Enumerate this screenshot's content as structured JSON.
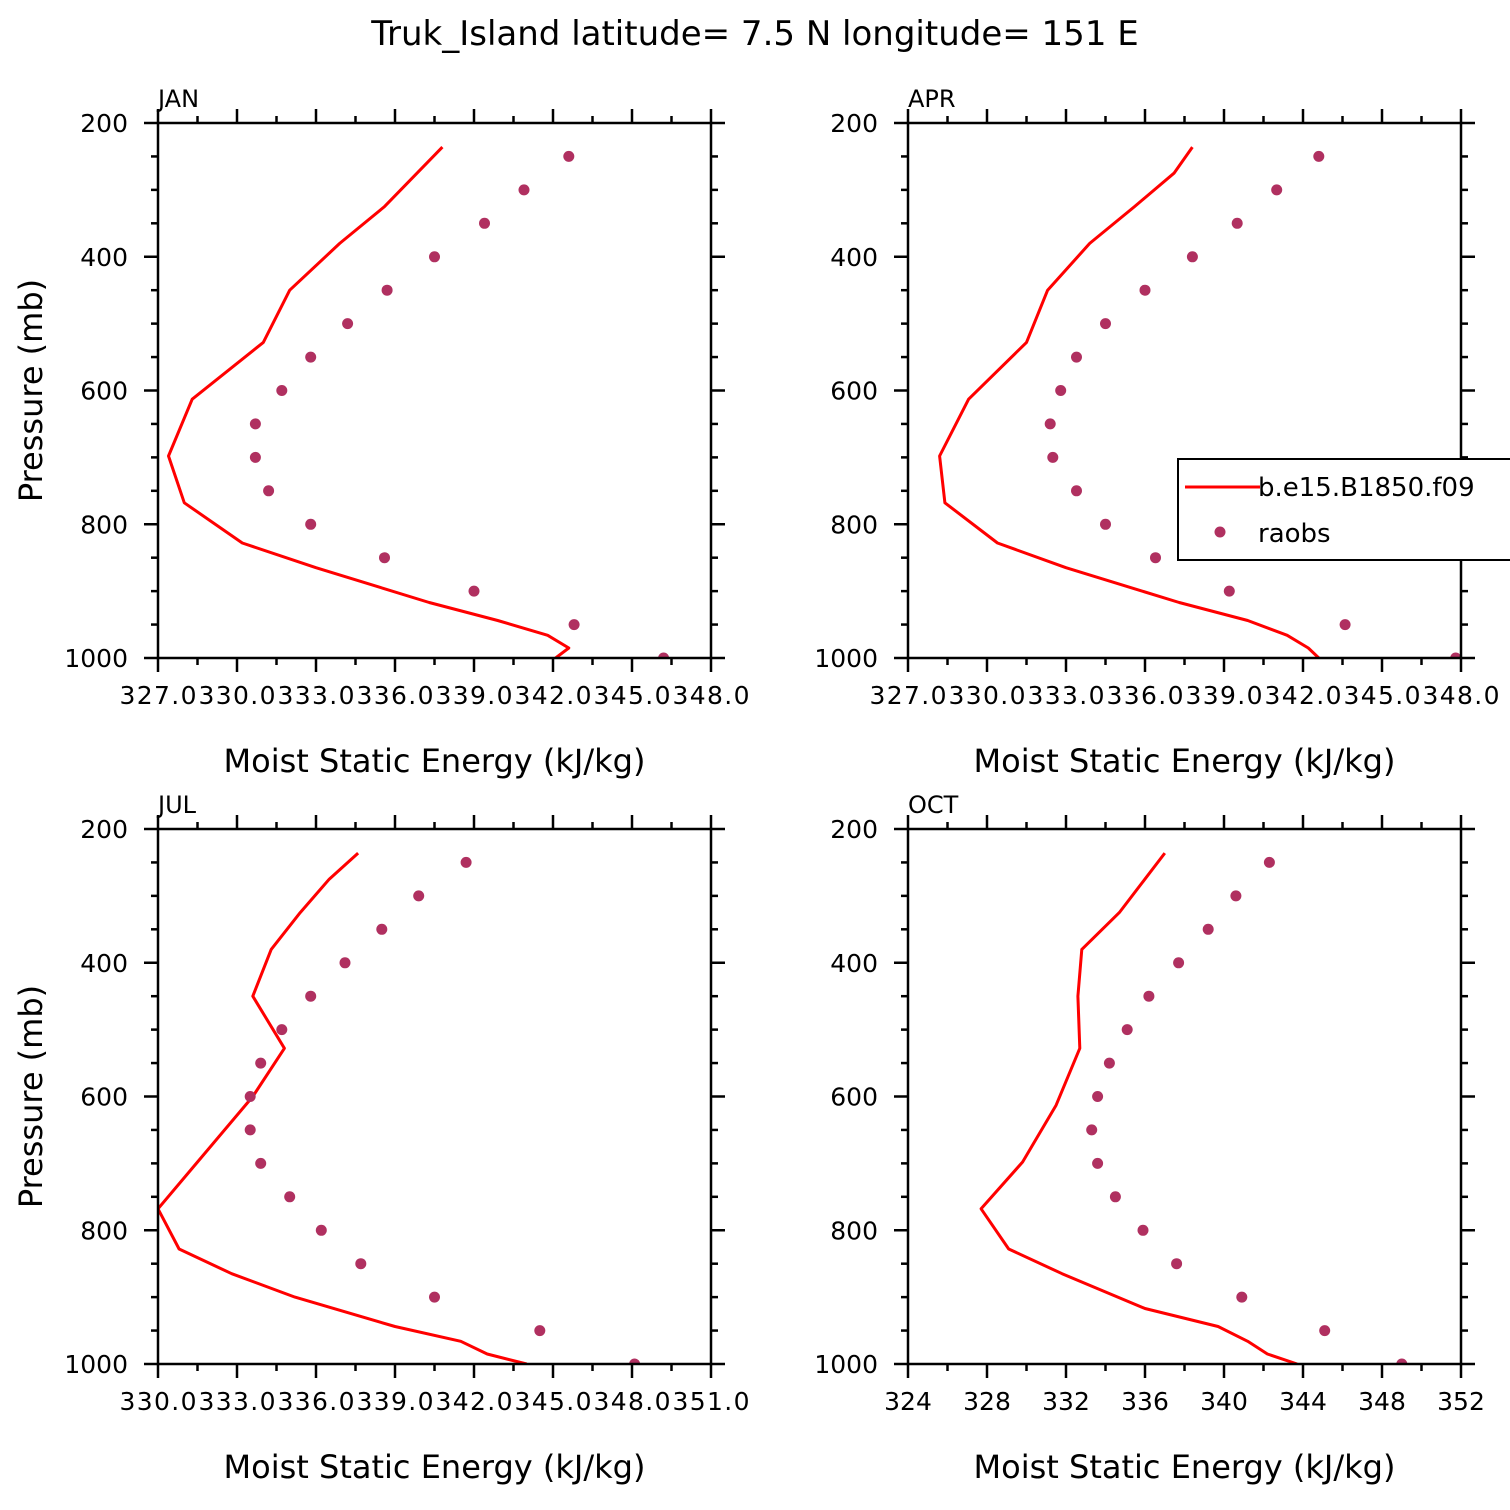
{
  "title": "Truk_Island  latitude= 7.5 N longitude= 151 E",
  "colors": {
    "model": "#ff0000",
    "obs": "#b03060",
    "axis": "#000000"
  },
  "chart_data": [
    {
      "type": "line",
      "panel": "JAN",
      "xlabel": "Moist Static Energy (kJ/kg)",
      "ylabel": "Pressure (mb)",
      "xlim": [
        327,
        348
      ],
      "ylim": [
        200,
        1000
      ],
      "y_inverted": true,
      "x_tick_values": [
        327,
        330,
        333,
        336,
        339,
        342,
        345,
        348
      ],
      "x_tick_labels": [
        "327.0",
        "330.0",
        "333.0",
        "336.0",
        "339.0",
        "342.0",
        "345.0",
        "348.0"
      ],
      "y_tick_values": [
        200,
        400,
        600,
        800,
        1000
      ],
      "y_tick_labels": [
        "200",
        "400",
        "600",
        "800",
        "1000"
      ],
      "series": [
        {
          "name": "b.e15.B1850.f09",
          "kind": "line",
          "x": [
            337.8,
            335.6,
            333.9,
            332.0,
            331.0,
            328.3,
            327.4,
            328.0,
            330.2,
            333.0,
            337.3,
            339.9,
            341.8,
            342.6,
            342.1
          ],
          "y": [
            236,
            325,
            380,
            450,
            528,
            613,
            698,
            768,
            828,
            865,
            917,
            944,
            966,
            985,
            1000
          ]
        },
        {
          "name": "raobs",
          "kind": "scatter",
          "x": [
            342.6,
            340.9,
            339.4,
            337.5,
            335.7,
            334.2,
            332.8,
            331.7,
            330.7,
            330.7,
            331.2,
            332.8,
            335.6,
            339.0,
            342.8,
            346.2
          ],
          "y": [
            250,
            300,
            350,
            400,
            450,
            500,
            550,
            600,
            650,
            700,
            750,
            800,
            850,
            900,
            950,
            1000
          ]
        }
      ]
    },
    {
      "type": "line",
      "panel": "APR",
      "xlabel": "Moist Static Energy (kJ/kg)",
      "ylabel": "",
      "xlim": [
        327,
        348
      ],
      "ylim": [
        200,
        1000
      ],
      "y_inverted": true,
      "x_tick_values": [
        327,
        330,
        333,
        336,
        339,
        342,
        345,
        348
      ],
      "x_tick_labels": [
        "327.0",
        "330.0",
        "333.0",
        "336.0",
        "339.0",
        "342.0",
        "345.0",
        "348.0"
      ],
      "y_tick_values": [
        200,
        400,
        600,
        800,
        1000
      ],
      "y_tick_labels": [
        "200",
        "400",
        "600",
        "800",
        "1000"
      ],
      "legend": {
        "position": "right",
        "entries": [
          "b.e15.B1850.f09",
          "raobs"
        ]
      },
      "series": [
        {
          "name": "b.e15.B1850.f09",
          "kind": "line",
          "x": [
            337.8,
            337.1,
            335.6,
            333.9,
            332.3,
            331.5,
            329.3,
            328.2,
            328.4,
            330.4,
            333.0,
            337.3,
            339.9,
            341.4,
            342.2,
            342.6
          ],
          "y": [
            236,
            275,
            325,
            380,
            450,
            528,
            613,
            698,
            768,
            828,
            865,
            917,
            944,
            966,
            985,
            1000
          ]
        },
        {
          "name": "raobs",
          "kind": "scatter",
          "x": [
            342.6,
            341.0,
            339.5,
            337.8,
            336.0,
            334.5,
            333.4,
            332.8,
            332.4,
            332.5,
            333.4,
            334.5,
            336.4,
            339.2,
            343.6,
            347.8
          ],
          "y": [
            250,
            300,
            350,
            400,
            450,
            500,
            550,
            600,
            650,
            700,
            750,
            800,
            850,
            900,
            950,
            1000
          ]
        }
      ]
    },
    {
      "type": "line",
      "panel": "JUL",
      "xlabel": "Moist Static Energy (kJ/kg)",
      "ylabel": "Pressure (mb)",
      "xlim": [
        330,
        351
      ],
      "ylim": [
        200,
        1000
      ],
      "y_inverted": true,
      "x_tick_values": [
        330,
        333,
        336,
        339,
        342,
        345,
        348,
        351
      ],
      "x_tick_labels": [
        "330.0",
        "333.0",
        "336.0",
        "339.0",
        "342.0",
        "345.0",
        "348.0",
        "351.0"
      ],
      "y_tick_values": [
        200,
        400,
        600,
        800,
        1000
      ],
      "y_tick_labels": [
        "200",
        "400",
        "600",
        "800",
        "1000"
      ],
      "series": [
        {
          "name": "b.e15.B1850.f09",
          "kind": "line",
          "x": [
            337.6,
            336.5,
            335.4,
            334.3,
            333.6,
            334.8,
            333.6,
            331.5,
            330.0,
            330.8,
            332.8,
            335.2,
            339.0,
            341.5,
            342.5,
            344.0
          ],
          "y": [
            236,
            275,
            325,
            380,
            450,
            528,
            600,
            698,
            768,
            828,
            865,
            900,
            944,
            966,
            985,
            1000
          ]
        },
        {
          "name": "raobs",
          "kind": "scatter",
          "x": [
            341.7,
            339.9,
            338.5,
            337.1,
            335.8,
            334.7,
            333.9,
            333.5,
            333.5,
            333.9,
            335.0,
            336.2,
            337.7,
            340.5,
            344.5,
            348.1
          ],
          "y": [
            250,
            300,
            350,
            400,
            450,
            500,
            550,
            600,
            650,
            700,
            750,
            800,
            850,
            900,
            950,
            1000
          ]
        }
      ]
    },
    {
      "type": "line",
      "panel": "OCT",
      "xlabel": "Moist Static Energy (kJ/kg)",
      "ylabel": "",
      "xlim": [
        324,
        352
      ],
      "ylim": [
        200,
        1000
      ],
      "y_inverted": true,
      "x_tick_values": [
        324,
        328,
        332,
        336,
        340,
        344,
        348,
        352
      ],
      "x_tick_labels": [
        "324",
        "328",
        "332",
        "336",
        "340",
        "344",
        "348",
        "352"
      ],
      "y_tick_values": [
        200,
        400,
        600,
        800,
        1000
      ],
      "y_tick_labels": [
        "200",
        "400",
        "600",
        "800",
        "1000"
      ],
      "series": [
        {
          "name": "b.e15.B1850.f09",
          "kind": "line",
          "x": [
            337.0,
            334.7,
            332.8,
            332.6,
            332.7,
            331.5,
            329.8,
            327.7,
            329.1,
            331.8,
            336.0,
            339.7,
            341.2,
            342.2,
            343.7
          ],
          "y": [
            236,
            325,
            380,
            450,
            528,
            613,
            698,
            768,
            828,
            865,
            917,
            944,
            966,
            985,
            1000
          ]
        },
        {
          "name": "raobs",
          "kind": "scatter",
          "x": [
            342.3,
            340.6,
            339.2,
            337.7,
            336.2,
            335.1,
            334.2,
            333.6,
            333.3,
            333.6,
            334.5,
            335.9,
            337.6,
            340.9,
            345.1,
            349.0
          ],
          "y": [
            250,
            300,
            350,
            400,
            450,
            500,
            550,
            600,
            650,
            700,
            750,
            800,
            850,
            900,
            950,
            1000
          ]
        }
      ]
    }
  ]
}
